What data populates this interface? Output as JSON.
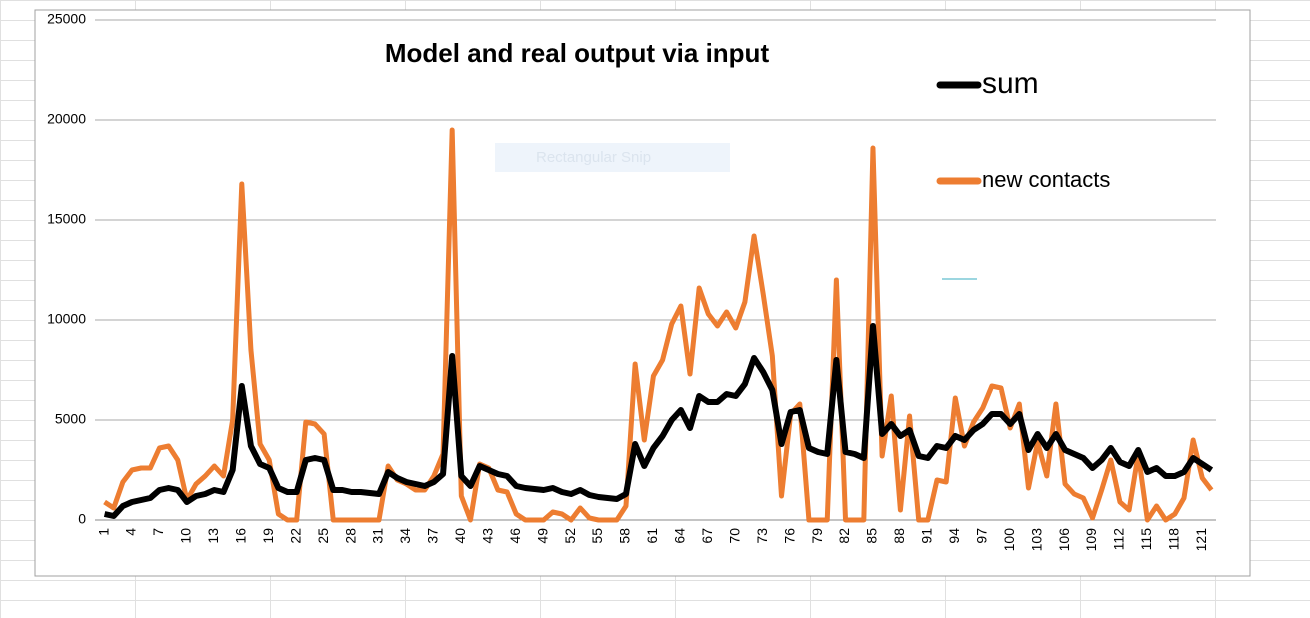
{
  "chart_data": {
    "type": "line",
    "title": "Model and real  output  via input",
    "overlay_text": "Rectangular Snip",
    "categories": [
      "1",
      null,
      null,
      "4",
      null,
      null,
      "7",
      null,
      null,
      "10",
      null,
      null,
      "13",
      null,
      null,
      "16",
      null,
      null,
      "19",
      null,
      null,
      "22",
      null,
      null,
      "25",
      null,
      null,
      "28",
      null,
      null,
      "31",
      null,
      null,
      "34",
      null,
      null,
      "37",
      null,
      null,
      "40",
      null,
      null,
      "43",
      null,
      null,
      "46",
      null,
      null,
      "49",
      null,
      null,
      "52",
      null,
      null,
      "55",
      null,
      null,
      "58",
      null,
      null,
      "61",
      null,
      null,
      "64",
      null,
      null,
      "67",
      null,
      null,
      "70",
      null,
      null,
      "73",
      null,
      null,
      "76",
      null,
      null,
      "79",
      null,
      null,
      "82",
      null,
      null,
      "85",
      null,
      null,
      "88",
      null,
      null,
      "91",
      null,
      null,
      "94",
      null,
      null,
      "97",
      null,
      null,
      "100",
      null,
      null,
      "103",
      null,
      null,
      "106",
      null,
      null,
      "109",
      null,
      null,
      "112",
      null,
      null,
      "115",
      null,
      null,
      "118",
      null,
      null,
      "121",
      null
    ],
    "series": [
      {
        "name": "sum",
        "color": "#000000",
        "values": [
          300,
          200,
          700,
          900,
          1000,
          1100,
          1500,
          1600,
          1500,
          900,
          1200,
          1300,
          1500,
          1400,
          2500,
          6700,
          3700,
          2800,
          2600,
          1600,
          1400,
          1400,
          3000,
          3100,
          3000,
          1500,
          1500,
          1400,
          1400,
          1350,
          1300,
          2400,
          2100,
          1900,
          1800,
          1700,
          1900,
          2300,
          8200,
          2200,
          1700,
          2700,
          2500,
          2300,
          2200,
          1700,
          1600,
          1550,
          1500,
          1600,
          1400,
          1300,
          1500,
          1250,
          1150,
          1100,
          1050,
          1300,
          3800,
          2700,
          3600,
          4200,
          5000,
          5500,
          4600,
          6200,
          5900,
          5900,
          6300,
          6200,
          6800,
          8100,
          7400,
          6500,
          3800,
          5400,
          5500,
          3600,
          3400,
          3300,
          8000,
          3400,
          3300,
          3100,
          9700,
          4300,
          4800,
          4200,
          4500,
          3200,
          3100,
          3700,
          3600,
          4200,
          4000,
          4500,
          4800,
          5300,
          5300,
          4800,
          5300,
          3500,
          4300,
          3600,
          4300,
          3500,
          3300,
          3100,
          2600,
          3000,
          3600,
          2900,
          2700,
          3500,
          2400,
          2600,
          2200,
          2200,
          2400,
          3100,
          2800,
          2500
        ]
      },
      {
        "name": "new contacts",
        "color": "#ed7d31",
        "values": [
          900,
          600,
          1900,
          2500,
          2600,
          2600,
          3600,
          3700,
          3000,
          1000,
          1800,
          2200,
          2700,
          2200,
          5000,
          16800,
          8500,
          3800,
          3000,
          300,
          0,
          0,
          4900,
          4800,
          4300,
          0,
          0,
          0,
          0,
          0,
          0,
          2700,
          2000,
          1800,
          1500,
          1500,
          2200,
          3300,
          19500,
          1200,
          0,
          2800,
          2600,
          1500,
          1400,
          300,
          0,
          0,
          0,
          400,
          300,
          0,
          600,
          100,
          0,
          0,
          0,
          700,
          7800,
          4000,
          7200,
          8000,
          9800,
          10700,
          7300,
          11600,
          10300,
          9700,
          10400,
          9600,
          10900,
          14200,
          11300,
          8200,
          1200,
          5300,
          5800,
          0,
          0,
          0,
          12000,
          0,
          0,
          0,
          18600,
          3200,
          6200,
          500,
          5200,
          0,
          0,
          2000,
          1900,
          6100,
          3700,
          4900,
          5600,
          6700,
          6600,
          4600,
          5800,
          1600,
          3900,
          2200,
          5800,
          1800,
          1300,
          1100,
          100,
          1500,
          3000,
          900,
          500,
          3300,
          0,
          700,
          0,
          300,
          1100,
          4000,
          2100,
          1500
        ]
      }
    ],
    "ylim": [
      0,
      25000
    ],
    "yticks": [
      0,
      5000,
      10000,
      15000,
      20000,
      25000
    ],
    "grid": true,
    "legend": "right"
  }
}
